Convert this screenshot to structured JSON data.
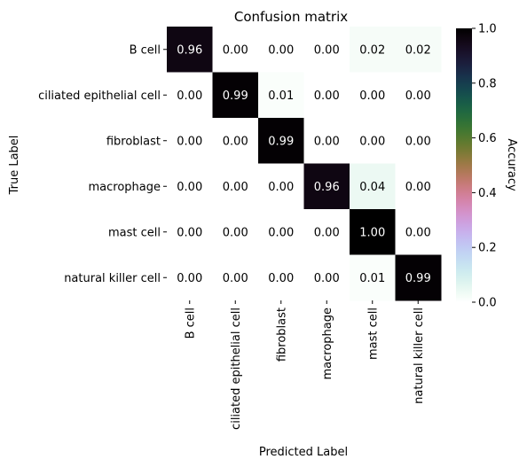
{
  "chart_data": {
    "type": "heatmap",
    "title": "Confusion matrix",
    "xlabel": "Predicted Label",
    "ylabel": "True Label",
    "row_labels": [
      "B cell",
      "ciliated epithelial cell",
      "fibroblast",
      "macrophage",
      "mast cell",
      "natural killer cell"
    ],
    "col_labels": [
      "B cell",
      "ciliated epithelial cell",
      "fibroblast",
      "macrophage",
      "mast cell",
      "natural killer cell"
    ],
    "values": [
      [
        0.96,
        0.0,
        0.0,
        0.0,
        0.02,
        0.02
      ],
      [
        0.0,
        0.99,
        0.01,
        0.0,
        0.0,
        0.0
      ],
      [
        0.0,
        0.0,
        0.99,
        0.0,
        0.0,
        0.0
      ],
      [
        0.0,
        0.0,
        0.0,
        0.96,
        0.04,
        0.0
      ],
      [
        0.0,
        0.0,
        0.0,
        0.0,
        1.0,
        0.0
      ],
      [
        0.0,
        0.0,
        0.0,
        0.0,
        0.01,
        0.99
      ]
    ],
    "value_format": "0.00",
    "colorbar": {
      "label": "Accuracy",
      "range": [
        0.0,
        1.0
      ],
      "ticks": [
        "0.0",
        "0.2",
        "0.4",
        "0.6",
        "0.8",
        "1.0"
      ],
      "colormap": "cubehelix_r"
    }
  }
}
